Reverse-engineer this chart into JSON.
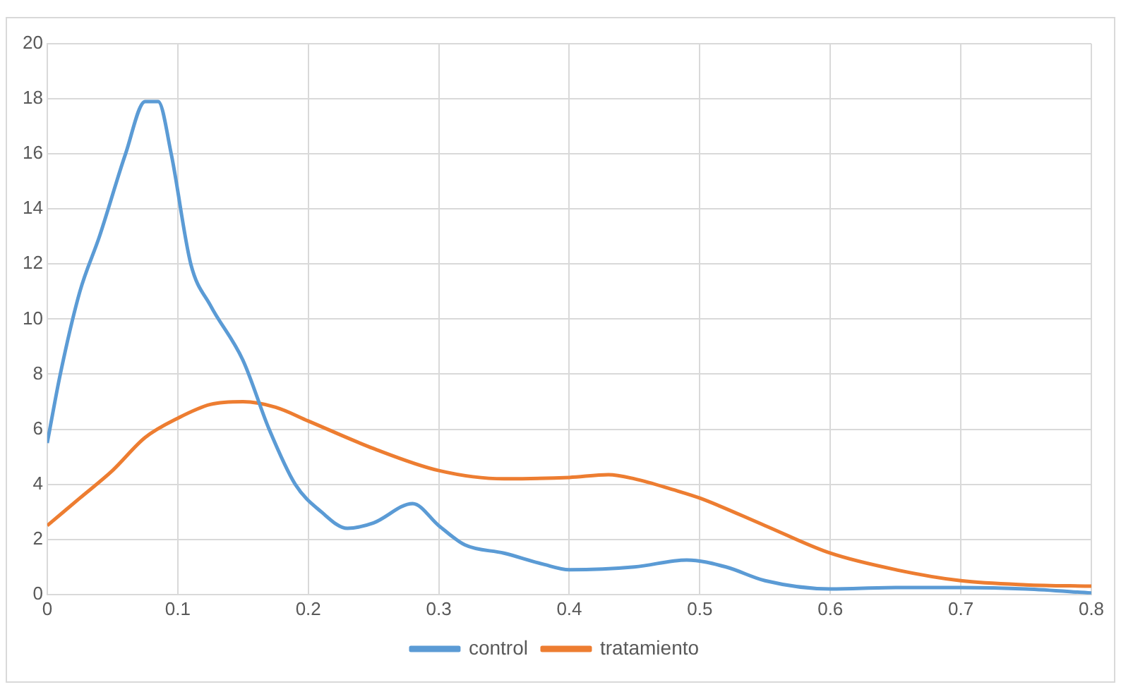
{
  "chart_data": {
    "type": "line",
    "xlim": [
      0,
      0.8
    ],
    "xticks": [
      0,
      0.1,
      0.2,
      0.3,
      0.4,
      0.5,
      0.6,
      0.7,
      0.8
    ],
    "ylim": [
      0,
      20
    ],
    "yticks": [
      0,
      2,
      4,
      6,
      8,
      10,
      12,
      14,
      16,
      18,
      20
    ],
    "grid": true,
    "legend": "bottom",
    "marker": "none",
    "line_style": "solid",
    "series": [
      {
        "name": "control",
        "color": "#5b9bd5",
        "x": [
          0,
          0.01,
          0.025,
          0.04,
          0.06,
          0.075,
          0.085,
          0.095,
          0.11,
          0.125,
          0.15,
          0.17,
          0.19,
          0.21,
          0.23,
          0.25,
          0.28,
          0.3,
          0.32,
          0.35,
          0.38,
          0.4,
          0.45,
          0.49,
          0.52,
          0.55,
          0.6,
          0.65,
          0.7,
          0.75,
          0.8
        ],
        "values": [
          5.5,
          8,
          11,
          13,
          16,
          17.9,
          17.9,
          16,
          12,
          10.5,
          8.5,
          6,
          4,
          3,
          2.4,
          2.6,
          3.3,
          2.5,
          1.8,
          1.5,
          1.1,
          0.9,
          1,
          1.25,
          1,
          0.5,
          0.2,
          0.25,
          0.25,
          0.2,
          0.05
        ]
      },
      {
        "name": "tratamiento",
        "color": "#ed7d31",
        "x": [
          0,
          0.025,
          0.05,
          0.075,
          0.1,
          0.125,
          0.15,
          0.175,
          0.2,
          0.25,
          0.3,
          0.35,
          0.4,
          0.43,
          0.45,
          0.48,
          0.5,
          0.55,
          0.6,
          0.65,
          0.7,
          0.75,
          0.8
        ],
        "values": [
          2.5,
          3.5,
          4.5,
          5.7,
          6.4,
          6.9,
          7,
          6.8,
          6.3,
          5.3,
          4.5,
          4.2,
          4.25,
          4.35,
          4.2,
          3.8,
          3.5,
          2.5,
          1.5,
          0.9,
          0.5,
          0.35,
          0.3
        ]
      }
    ]
  }
}
